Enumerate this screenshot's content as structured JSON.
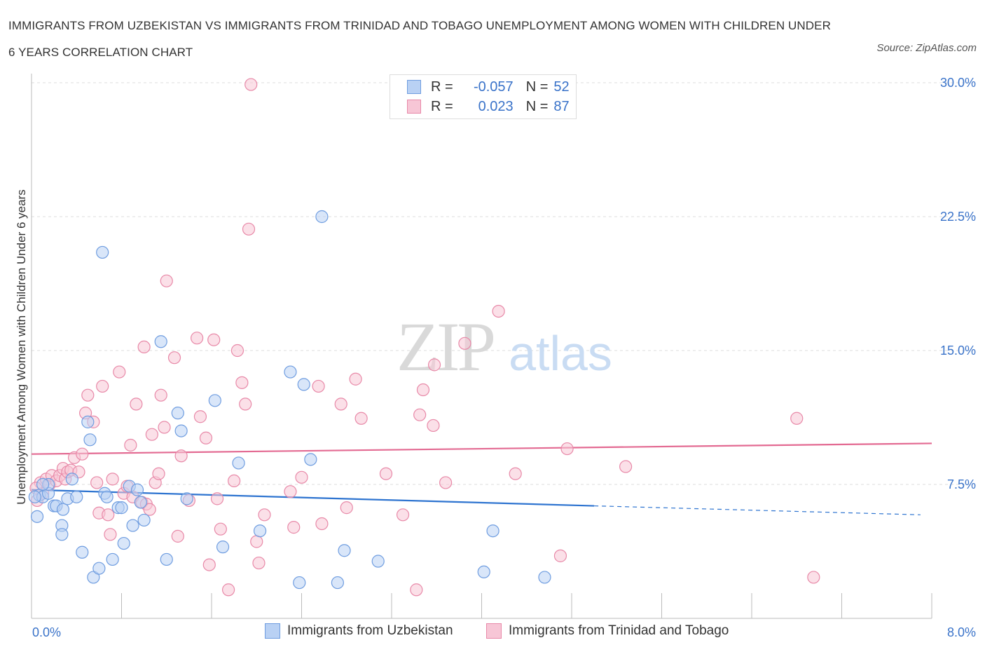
{
  "title": "IMMIGRANTS FROM UZBEKISTAN VS IMMIGRANTS FROM TRINIDAD AND TOBAGO UNEMPLOYMENT AMONG WOMEN WITH CHILDREN UNDER 6 YEARS CORRELATION CHART",
  "source": "Source: ZipAtlas.com",
  "watermark": {
    "zip": "ZIP",
    "atlas": "atlas"
  },
  "legend": {
    "r_label": "R =",
    "n_label": "N =",
    "rows": [
      {
        "r": "-0.057",
        "n": "52"
      },
      {
        "r": "0.023",
        "n": "87"
      }
    ]
  },
  "colors": {
    "series1_stroke": "#6f9de0",
    "series1_fill": "#b9d1f4",
    "series1_line": "#2e74d0",
    "series2_stroke": "#e889a8",
    "series2_fill": "#f7c6d6",
    "series2_line": "#e36a92",
    "axis_label": "#3a73c9",
    "grid": "#dddddd"
  },
  "chart_data": {
    "type": "scatter",
    "xlabel": "",
    "ylabel": "Unemployment Among Women with Children Under 6 years",
    "xlim": [
      0,
      8
    ],
    "ylim": [
      0,
      30
    ],
    "x_tick_labels": [
      "0.0%",
      "8.0%"
    ],
    "y_ticks": [
      7.5,
      15,
      22.5,
      30
    ],
    "y_tick_labels": [
      "7.5%",
      "15.0%",
      "22.5%",
      "30.0%"
    ],
    "grid": "horizontal dashed",
    "series": [
      {
        "name": "Immigrants from Uzbekistan",
        "trend": {
          "x0": 0,
          "y0": 7.2,
          "x1": 5.0,
          "y1": 6.3,
          "dash_to_x": 7.9,
          "dash_to_y": 5.8
        },
        "points": [
          [
            0.05,
            5.7
          ],
          [
            0.07,
            6.9
          ],
          [
            0.1,
            6.8
          ],
          [
            0.15,
            7.0
          ],
          [
            0.15,
            7.5
          ],
          [
            0.2,
            6.3
          ],
          [
            0.22,
            6.3
          ],
          [
            0.27,
            5.2
          ],
          [
            0.28,
            6.1
          ],
          [
            0.27,
            4.7
          ],
          [
            0.32,
            6.7
          ],
          [
            0.36,
            7.8
          ],
          [
            0.4,
            6.8
          ],
          [
            0.45,
            3.7
          ],
          [
            0.5,
            11.0
          ],
          [
            0.52,
            10.0
          ],
          [
            0.55,
            2.3
          ],
          [
            0.6,
            2.8
          ],
          [
            0.63,
            20.5
          ],
          [
            0.65,
            7.0
          ],
          [
            0.67,
            6.8
          ],
          [
            0.72,
            3.3
          ],
          [
            0.77,
            6.2
          ],
          [
            0.8,
            6.2
          ],
          [
            0.82,
            4.2
          ],
          [
            0.87,
            7.4
          ],
          [
            0.9,
            5.2
          ],
          [
            0.94,
            7.2
          ],
          [
            0.97,
            6.5
          ],
          [
            1.0,
            5.5
          ],
          [
            1.15,
            15.5
          ],
          [
            1.2,
            3.3
          ],
          [
            1.3,
            11.5
          ],
          [
            1.33,
            10.5
          ],
          [
            1.38,
            6.7
          ],
          [
            1.63,
            12.2
          ],
          [
            1.7,
            4.0
          ],
          [
            1.84,
            8.7
          ],
          [
            2.03,
            4.9
          ],
          [
            2.3,
            13.8
          ],
          [
            2.38,
            2.0
          ],
          [
            2.42,
            13.1
          ],
          [
            2.48,
            8.9
          ],
          [
            2.58,
            22.5
          ],
          [
            2.72,
            2.0
          ],
          [
            2.78,
            3.8
          ],
          [
            3.08,
            3.2
          ],
          [
            4.02,
            2.6
          ],
          [
            4.1,
            4.9
          ],
          [
            4.56,
            2.3
          ],
          [
            0.03,
            6.8
          ],
          [
            0.1,
            7.5
          ]
        ]
      },
      {
        "name": "Immigrants from Trinidad and Tobago",
        "trend": {
          "x0": 0,
          "y0": 9.2,
          "x1": 8.0,
          "y1": 9.8
        },
        "points": [
          [
            0.05,
            6.6
          ],
          [
            0.08,
            7.6
          ],
          [
            0.1,
            7.0
          ],
          [
            0.13,
            7.8
          ],
          [
            0.16,
            7.5
          ],
          [
            0.18,
            8.0
          ],
          [
            0.22,
            7.7
          ],
          [
            0.25,
            8.0
          ],
          [
            0.28,
            8.4
          ],
          [
            0.3,
            7.8
          ],
          [
            0.32,
            8.2
          ],
          [
            0.35,
            8.3
          ],
          [
            0.38,
            9.0
          ],
          [
            0.42,
            8.2
          ],
          [
            0.45,
            9.2
          ],
          [
            0.48,
            11.5
          ],
          [
            0.5,
            12.5
          ],
          [
            0.55,
            11.0
          ],
          [
            0.58,
            7.6
          ],
          [
            0.6,
            5.9
          ],
          [
            0.63,
            13.0
          ],
          [
            0.68,
            5.8
          ],
          [
            0.7,
            4.7
          ],
          [
            0.72,
            7.8
          ],
          [
            0.78,
            13.8
          ],
          [
            0.82,
            7.0
          ],
          [
            0.85,
            7.4
          ],
          [
            0.88,
            9.7
          ],
          [
            0.9,
            6.8
          ],
          [
            0.93,
            12.0
          ],
          [
            0.98,
            6.5
          ],
          [
            1.0,
            15.2
          ],
          [
            1.02,
            6.4
          ],
          [
            1.05,
            6.1
          ],
          [
            1.07,
            10.3
          ],
          [
            1.1,
            7.6
          ],
          [
            1.13,
            8.1
          ],
          [
            1.15,
            12.5
          ],
          [
            1.18,
            10.7
          ],
          [
            1.2,
            18.9
          ],
          [
            1.27,
            14.6
          ],
          [
            1.3,
            4.6
          ],
          [
            1.33,
            9.1
          ],
          [
            1.4,
            6.6
          ],
          [
            1.47,
            15.7
          ],
          [
            1.5,
            11.3
          ],
          [
            1.55,
            10.1
          ],
          [
            1.58,
            3.0
          ],
          [
            1.62,
            15.6
          ],
          [
            1.65,
            6.7
          ],
          [
            1.68,
            5.0
          ],
          [
            1.75,
            1.6
          ],
          [
            1.8,
            7.7
          ],
          [
            1.83,
            15.0
          ],
          [
            1.87,
            13.2
          ],
          [
            1.9,
            12.0
          ],
          [
            1.93,
            21.8
          ],
          [
            1.95,
            29.9
          ],
          [
            2.0,
            4.3
          ],
          [
            2.02,
            3.1
          ],
          [
            2.07,
            5.8
          ],
          [
            2.3,
            7.1
          ],
          [
            2.33,
            5.1
          ],
          [
            2.4,
            7.9
          ],
          [
            2.55,
            13.0
          ],
          [
            2.58,
            5.3
          ],
          [
            2.75,
            12.0
          ],
          [
            2.8,
            6.2
          ],
          [
            2.88,
            13.4
          ],
          [
            2.93,
            11.2
          ],
          [
            3.15,
            8.1
          ],
          [
            3.3,
            5.8
          ],
          [
            3.42,
            1.6
          ],
          [
            3.45,
            11.4
          ],
          [
            3.48,
            12.8
          ],
          [
            3.58,
            14.2
          ],
          [
            3.57,
            10.8
          ],
          [
            3.68,
            7.6
          ],
          [
            3.85,
            15.4
          ],
          [
            4.15,
            17.2
          ],
          [
            4.3,
            8.1
          ],
          [
            4.7,
            3.5
          ],
          [
            4.76,
            9.5
          ],
          [
            5.28,
            8.5
          ],
          [
            6.8,
            11.2
          ],
          [
            6.95,
            2.3
          ],
          [
            0.04,
            7.3
          ]
        ]
      }
    ]
  },
  "bottom_legend": [
    "Immigrants from Uzbekistan",
    "Immigrants from Trinidad and Tobago"
  ]
}
